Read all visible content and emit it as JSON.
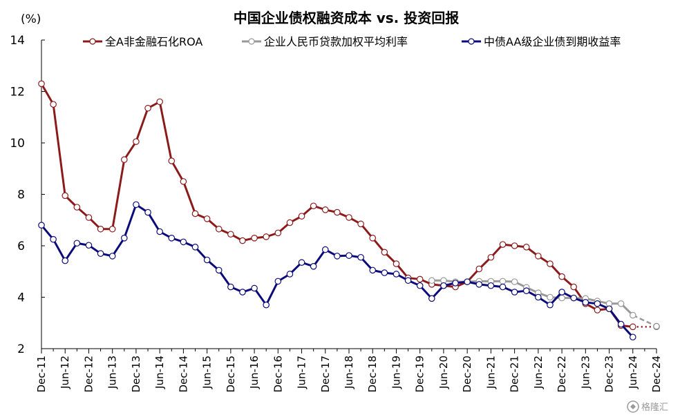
{
  "chart_data": {
    "type": "line",
    "title": "中国企业债权融资成本 vs. 投资回报",
    "unit": "(%)",
    "ylim": [
      2,
      14
    ],
    "yticks": [
      2,
      4,
      6,
      8,
      10,
      12,
      14
    ],
    "xticks": [
      "Dec-11",
      "Jun-12",
      "Dec-12",
      "Jun-13",
      "Dec-13",
      "Jun-14",
      "Dec-14",
      "Jun-15",
      "Dec-15",
      "Jun-16",
      "Dec-16",
      "Jun-17",
      "Dec-17",
      "Jun-18",
      "Dec-18",
      "Jun-19",
      "Dec-19",
      "Jun-20",
      "Dec-20",
      "Jun-21",
      "Dec-21",
      "Jun-22",
      "Dec-22",
      "Jun-23",
      "Dec-23",
      "Jun-24",
      "Dec-24"
    ],
    "x_unit": "quarter",
    "legend_position": "top",
    "grid": false,
    "series": [
      {
        "name": "全A非金融石化ROA",
        "color": "#8b1a1a",
        "style": "solid-line-with-hollow-markers",
        "points": [
          [
            "Dec-11",
            12.3
          ],
          [
            "Mar-12",
            11.5
          ],
          [
            "Jun-12",
            7.95
          ],
          [
            "Sep-12",
            7.5
          ],
          [
            "Dec-12",
            7.1
          ],
          [
            "Mar-13",
            6.65
          ],
          [
            "Jun-13",
            6.65
          ],
          [
            "Sep-13",
            9.35
          ],
          [
            "Dec-13",
            10.05
          ],
          [
            "Mar-14",
            11.35
          ],
          [
            "Jun-14",
            11.6
          ],
          [
            "Sep-14",
            9.3
          ],
          [
            "Dec-14",
            8.5
          ],
          [
            "Mar-15",
            7.25
          ],
          [
            "Jun-15",
            7.05
          ],
          [
            "Sep-15",
            6.65
          ],
          [
            "Dec-15",
            6.45
          ],
          [
            "Mar-16",
            6.2
          ],
          [
            "Jun-16",
            6.3
          ],
          [
            "Sep-16",
            6.35
          ],
          [
            "Dec-16",
            6.5
          ],
          [
            "Mar-17",
            6.9
          ],
          [
            "Jun-17",
            7.15
          ],
          [
            "Sep-17",
            7.55
          ],
          [
            "Dec-17",
            7.4
          ],
          [
            "Mar-18",
            7.3
          ],
          [
            "Jun-18",
            7.1
          ],
          [
            "Sep-18",
            6.85
          ],
          [
            "Dec-18",
            6.3
          ],
          [
            "Mar-19",
            5.75
          ],
          [
            "Jun-19",
            5.3
          ],
          [
            "Sep-19",
            4.75
          ],
          [
            "Dec-19",
            4.7
          ],
          [
            "Mar-20",
            4.5
          ],
          [
            "Jun-20",
            4.45
          ],
          [
            "Sep-20",
            4.4
          ],
          [
            "Dec-20",
            4.6
          ],
          [
            "Mar-21",
            5.1
          ],
          [
            "Jun-21",
            5.55
          ],
          [
            "Sep-21",
            6.05
          ],
          [
            "Dec-21",
            6.0
          ],
          [
            "Mar-22",
            5.95
          ],
          [
            "Jun-22",
            5.6
          ],
          [
            "Sep-22",
            5.3
          ],
          [
            "Dec-22",
            4.8
          ],
          [
            "Mar-23",
            4.4
          ],
          [
            "Jun-23",
            3.75
          ],
          [
            "Sep-23",
            3.5
          ],
          [
            "Dec-23",
            3.55
          ],
          [
            "Mar-24",
            2.9
          ],
          [
            "Jun-24",
            2.85
          ]
        ],
        "projection": [
          [
            "Jun-24",
            2.85
          ],
          [
            "Dec-24",
            2.85
          ]
        ]
      },
      {
        "name": "企业人民币贷款加权平均利率",
        "color": "#999999",
        "style": "solid-line-with-hollow-markers",
        "points": [
          [
            "Mar-20",
            4.65
          ],
          [
            "Jun-20",
            4.65
          ],
          [
            "Sep-20",
            4.6
          ],
          [
            "Dec-20",
            4.6
          ],
          [
            "Mar-21",
            4.62
          ],
          [
            "Jun-21",
            4.62
          ],
          [
            "Sep-21",
            4.62
          ],
          [
            "Dec-21",
            4.6
          ],
          [
            "Mar-22",
            4.38
          ],
          [
            "Jun-22",
            4.17
          ],
          [
            "Sep-22",
            4.0
          ],
          [
            "Dec-22",
            3.97
          ],
          [
            "Mar-23",
            3.97
          ],
          [
            "Jun-23",
            3.95
          ],
          [
            "Sep-23",
            3.85
          ],
          [
            "Dec-23",
            3.75
          ],
          [
            "Mar-24",
            3.75
          ],
          [
            "Jun-24",
            3.3
          ]
        ],
        "projection": [
          [
            "Jun-24",
            3.3
          ],
          [
            "Dec-24",
            2.87
          ]
        ]
      },
      {
        "name": "中债AA级企业债到期收益率",
        "color": "#0a0a7a",
        "style": "solid-line-with-hollow-markers",
        "points": [
          [
            "Dec-11",
            6.8
          ],
          [
            "Mar-12",
            6.25
          ],
          [
            "Jun-12",
            5.42
          ],
          [
            "Sep-12",
            6.1
          ],
          [
            "Dec-12",
            6.02
          ],
          [
            "Mar-13",
            5.7
          ],
          [
            "Jun-13",
            5.6
          ],
          [
            "Sep-13",
            6.3
          ],
          [
            "Dec-13",
            7.6
          ],
          [
            "Mar-14",
            7.3
          ],
          [
            "Jun-14",
            6.55
          ],
          [
            "Sep-14",
            6.3
          ],
          [
            "Dec-14",
            6.15
          ],
          [
            "Mar-15",
            5.95
          ],
          [
            "Jun-15",
            5.45
          ],
          [
            "Sep-15",
            5.05
          ],
          [
            "Dec-15",
            4.4
          ],
          [
            "Mar-16",
            4.2
          ],
          [
            "Jun-16",
            4.35
          ],
          [
            "Sep-16",
            3.7
          ],
          [
            "Dec-16",
            4.62
          ],
          [
            "Mar-17",
            4.9
          ],
          [
            "Jun-17",
            5.35
          ],
          [
            "Sep-17",
            5.2
          ],
          [
            "Dec-17",
            5.85
          ],
          [
            "Mar-18",
            5.6
          ],
          [
            "Jun-18",
            5.62
          ],
          [
            "Sep-18",
            5.55
          ],
          [
            "Dec-18",
            5.05
          ],
          [
            "Mar-19",
            4.95
          ],
          [
            "Jun-19",
            4.9
          ],
          [
            "Sep-19",
            4.65
          ],
          [
            "Dec-19",
            4.45
          ],
          [
            "Mar-20",
            3.95
          ],
          [
            "Jun-20",
            4.45
          ],
          [
            "Sep-20",
            4.55
          ],
          [
            "Dec-20",
            4.6
          ],
          [
            "Mar-21",
            4.5
          ],
          [
            "Jun-21",
            4.45
          ],
          [
            "Sep-21",
            4.4
          ],
          [
            "Dec-21",
            4.2
          ],
          [
            "Mar-22",
            4.25
          ],
          [
            "Jun-22",
            4.0
          ],
          [
            "Sep-22",
            3.7
          ],
          [
            "Dec-22",
            4.2
          ],
          [
            "Mar-23",
            3.97
          ],
          [
            "Jun-23",
            3.8
          ],
          [
            "Sep-23",
            3.75
          ],
          [
            "Dec-23",
            3.55
          ],
          [
            "Mar-24",
            2.95
          ],
          [
            "Jun-24",
            2.45
          ]
        ]
      }
    ]
  },
  "watermark": {
    "text": "格隆汇",
    "icon": "gelonghui-logo-icon"
  }
}
